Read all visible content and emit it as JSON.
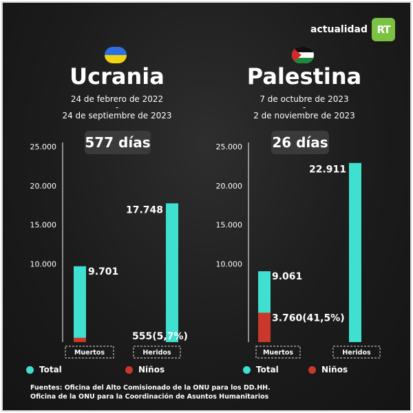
{
  "brand": {
    "text": "actualidad",
    "logo": "RT"
  },
  "colors": {
    "total": "#40e0d0",
    "ninos": "#c8392b",
    "background": "#1c1c1c",
    "axis": "#ffffff"
  },
  "legend": {
    "total_label": "Total",
    "ninos_label": "Niños"
  },
  "source": {
    "line1": "Fuentes: Oficina del Alto Comisionado de la ONU para los DD.HH.",
    "line2": "Oficina de la ONU para la Coordinación de Asuntos Humanitarios"
  },
  "panels": [
    {
      "country": "Ucrania",
      "flag_icon": "ukraine-flag-icon",
      "date_start": "24 de febrero de 2022",
      "date_sep": "-",
      "date_end": "24 de septiembre de 2023",
      "days": "577 días"
    },
    {
      "country": "Palestina",
      "flag_icon": "palestine-flag-icon",
      "date_start": "7 de octubre de 2023",
      "date_sep": "-",
      "date_end": "2 de noviembre de 2023",
      "days": "26 días"
    }
  ],
  "chart_data": [
    {
      "type": "bar",
      "title": "Ucrania",
      "categories": [
        "Muertos",
        "Heridos"
      ],
      "series": [
        {
          "name": "Total",
          "values": [
            9701,
            17748
          ]
        },
        {
          "name": "Niños",
          "values": [
            555,
            null
          ]
        }
      ],
      "data_labels": [
        "9.701",
        "555(5,7%)",
        "17.748"
      ],
      "y_ticks": [
        "25.000",
        "20.000",
        "15.000",
        "10.000"
      ],
      "ylim": [
        0,
        25000
      ],
      "grid": false,
      "legend_position": "bottom"
    },
    {
      "type": "bar",
      "title": "Palestina",
      "categories": [
        "Muertos",
        "Heridos"
      ],
      "series": [
        {
          "name": "Total",
          "values": [
            9061,
            22911
          ]
        },
        {
          "name": "Niños",
          "values": [
            3760,
            null
          ]
        }
      ],
      "data_labels": [
        "9.061",
        "3.760(41,5%)",
        "22.911"
      ],
      "y_ticks": [
        "25.000",
        "20.000",
        "15.000",
        "10.000"
      ],
      "ylim": [
        0,
        25000
      ],
      "grid": false,
      "legend_position": "bottom"
    }
  ]
}
